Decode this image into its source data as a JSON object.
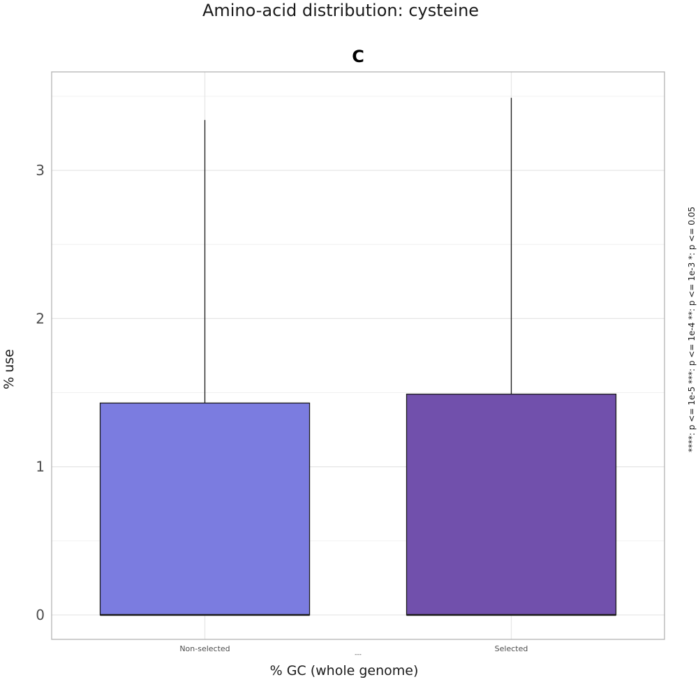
{
  "chart_data": {
    "type": "bar",
    "title": "Amino-acid distribution: cysteine",
    "panel_title": "C",
    "xlabel": "% GC (whole genome)",
    "ylabel": "% use",
    "x_sublabel": "---",
    "categories": [
      "Non-selected",
      "Selected"
    ],
    "values": [
      1.43,
      1.49
    ],
    "upper": [
      3.34,
      3.49
    ],
    "colors": [
      "#7b7ce0",
      "#7150ac"
    ],
    "ylim": [
      -0.17,
      3.7
    ],
    "yticks": [
      0,
      1,
      2,
      3
    ],
    "grid": true,
    "significance_legend": "****: p <= 1e-5     ***: p <= 1e-4     **: p <= 1e-3     *: p <= 0.05"
  }
}
